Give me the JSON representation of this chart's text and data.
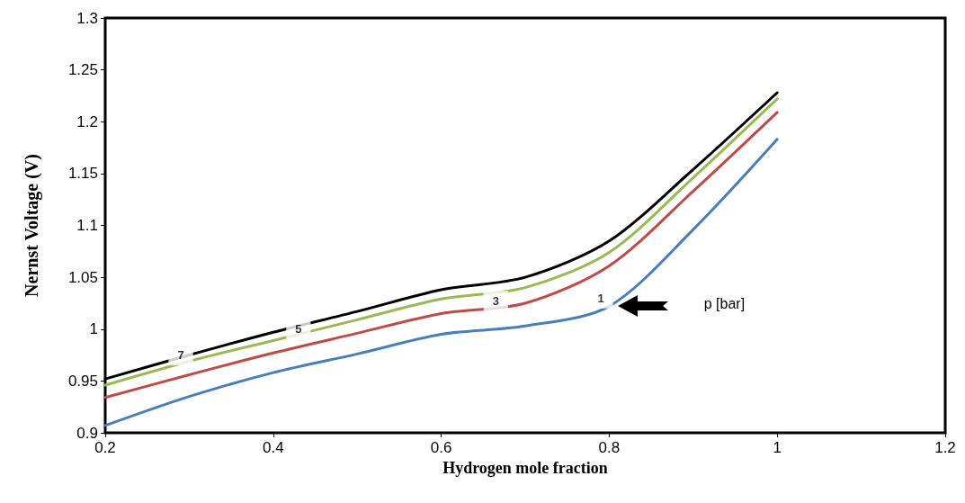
{
  "chart_data": {
    "type": "line",
    "xlabel": "Hydrogen mole fraction",
    "ylabel": "Nernst Voltage (V)",
    "xlim": [
      0.2,
      1.2
    ],
    "xticks": [
      0.2,
      0.4,
      0.6,
      0.8,
      1,
      1.2
    ],
    "ylim": [
      0.9,
      1.3
    ],
    "yticks": [
      0.9,
      0.95,
      1,
      1.05,
      1.1,
      1.15,
      1.2,
      1.25,
      1.3
    ],
    "x": [
      0.2,
      0.3,
      0.4,
      0.5,
      0.6,
      0.7,
      0.8,
      0.9,
      1.0
    ],
    "series": [
      {
        "color": "#4a7ebb",
        "values": [
          0.907,
          0.935,
          0.958,
          0.976,
          0.995,
          1.003,
          1.022,
          1.096,
          1.183
        ]
      },
      {
        "color": "#be4b48",
        "values": [
          0.934,
          0.956,
          0.977,
          0.996,
          1.015,
          1.025,
          1.061,
          1.133,
          1.209
        ]
      },
      {
        "color": "#98b954",
        "values": [
          0.946,
          0.969,
          0.989,
          1.009,
          1.029,
          1.04,
          1.074,
          1.146,
          1.222
        ]
      },
      {
        "color": "#000000",
        "values": [
          0.952,
          0.975,
          0.997,
          1.017,
          1.038,
          1.05,
          1.085,
          1.154,
          1.228
        ]
      }
    ],
    "annotations": [
      {
        "text": "7",
        "x": 0.29,
        "y": 0.975
      },
      {
        "text": "5",
        "x": 0.43,
        "y": 1.0
      },
      {
        "text": "3",
        "x": 0.665,
        "y": 1.027
      },
      {
        "text": "1",
        "x": 0.79,
        "y": 1.03
      },
      "p [bar]"
    ],
    "grid": false,
    "marker": "none",
    "line_style": "solid"
  }
}
